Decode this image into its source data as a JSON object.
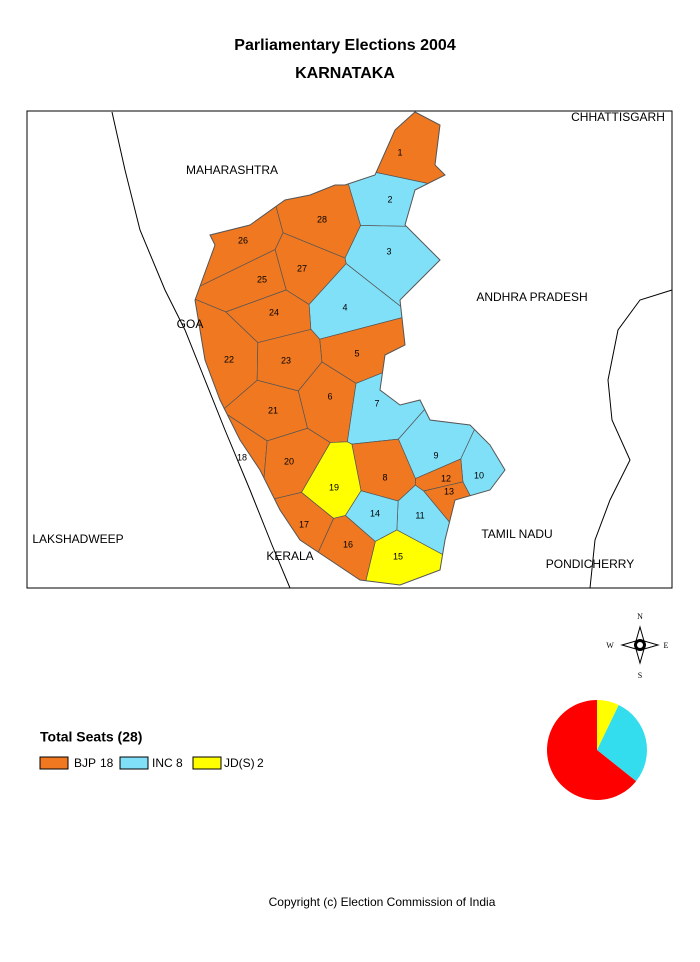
{
  "title": "Parliamentary Elections 2004",
  "subtitle": "KARNATAKA",
  "neighbours": [
    "MAHARASHTRA",
    "CHHATTISGARH",
    "ANDHRA PRADESH",
    "GOA",
    "LAKSHADWEEP",
    "TAMIL NADU",
    "KERALA",
    "PONDICHERRY"
  ],
  "constituencies": [
    {
      "number": 1,
      "winner": "BJP"
    },
    {
      "number": 2,
      "winner": "INC"
    },
    {
      "number": 3,
      "winner": "INC"
    },
    {
      "number": 4,
      "winner": "INC"
    },
    {
      "number": 5,
      "winner": "BJP"
    },
    {
      "number": 6,
      "winner": "BJP"
    },
    {
      "number": 7,
      "winner": "INC"
    },
    {
      "number": 8,
      "winner": "BJP"
    },
    {
      "number": 9,
      "winner": "INC"
    },
    {
      "number": 10,
      "winner": "INC"
    },
    {
      "number": 11,
      "winner": "INC"
    },
    {
      "number": 12,
      "winner": "BJP"
    },
    {
      "number": 13,
      "winner": "BJP"
    },
    {
      "number": 14,
      "winner": "INC"
    },
    {
      "number": 15,
      "winner": "JD(S)"
    },
    {
      "number": 16,
      "winner": "BJP"
    },
    {
      "number": 17,
      "winner": "BJP"
    },
    {
      "number": 18,
      "winner": "BJP"
    },
    {
      "number": 19,
      "winner": "JD(S)"
    },
    {
      "number": 20,
      "winner": "BJP"
    },
    {
      "number": 21,
      "winner": "BJP"
    },
    {
      "number": 22,
      "winner": "BJP"
    },
    {
      "number": 23,
      "winner": "BJP"
    },
    {
      "number": 24,
      "winner": "BJP"
    },
    {
      "number": 25,
      "winner": "BJP"
    },
    {
      "number": 26,
      "winner": "BJP"
    },
    {
      "number": 27,
      "winner": "BJP"
    },
    {
      "number": 28,
      "winner": "BJP"
    }
  ],
  "compass": [
    "N",
    "S",
    "E",
    "W"
  ],
  "legend": {
    "title": "Total Seats (28)",
    "items": [
      {
        "party": "BJP",
        "seats": 18,
        "color": "#f07820",
        "pie_color": "#ff0000"
      },
      {
        "party": "INC",
        "seats": 8,
        "color": "#80e0f8",
        "pie_color": "#33ddee"
      },
      {
        "party": "JD(S)",
        "seats": 2,
        "color": "#ffff00",
        "pie_color": "#ffff00"
      }
    ]
  },
  "copyright": "Copyright (c) Election Commission of India"
}
